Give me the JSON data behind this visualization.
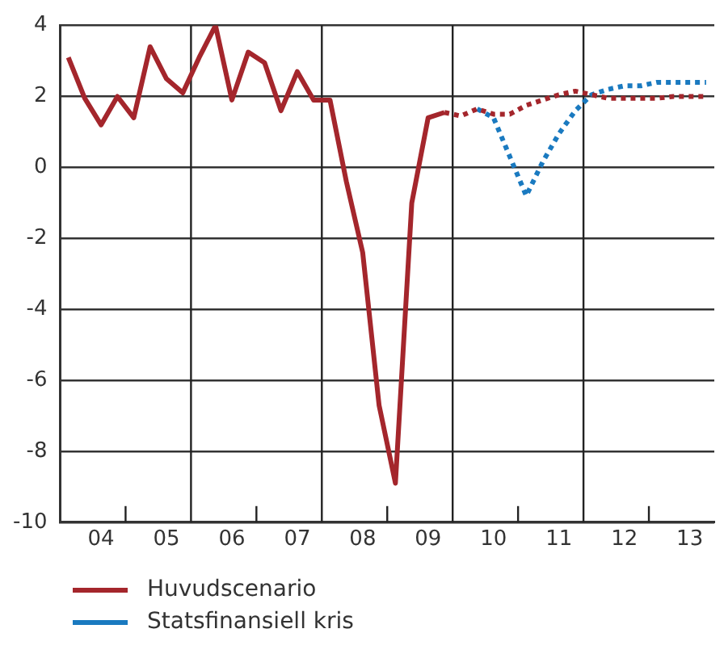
{
  "chart_data": {
    "type": "line",
    "ylim": [
      -10,
      4
    ],
    "yticks": [
      4,
      2,
      0,
      -2,
      -4,
      -6,
      -8,
      -10
    ],
    "categories": [
      null,
      null,
      "04",
      null,
      null,
      null,
      "05",
      null,
      null,
      null,
      "06",
      null,
      null,
      null,
      "07",
      null,
      null,
      null,
      "08",
      null,
      null,
      null,
      "09",
      null,
      null,
      null,
      "10",
      null,
      null,
      null,
      "11",
      null,
      null,
      null,
      "12",
      null,
      null,
      null,
      "13",
      null
    ],
    "grid": "y",
    "legend": "bottom",
    "series": [
      {
        "name": "Huvudscenario",
        "color": "#a4262c",
        "line_style": "solid",
        "values": [
          3.1,
          1.95,
          1.2,
          2.0,
          1.4,
          3.4,
          2.5,
          2.1,
          3.1,
          4.0,
          1.9,
          3.25,
          2.95,
          1.6,
          2.7,
          1.9,
          1.9,
          -0.4,
          -2.4,
          -6.7,
          -8.9,
          -1.0,
          1.4,
          1.55,
          null,
          null,
          null,
          null,
          null,
          null,
          null,
          null,
          null,
          null,
          null,
          null,
          null,
          null,
          null,
          null
        ]
      },
      {
        "color": "#a4262c",
        "line_style": "dotted",
        "values": [
          null,
          null,
          null,
          null,
          null,
          null,
          null,
          null,
          null,
          null,
          null,
          null,
          null,
          null,
          null,
          null,
          null,
          null,
          null,
          null,
          null,
          null,
          null,
          1.55,
          1.45,
          1.65,
          1.5,
          1.5,
          1.75,
          1.9,
          2.05,
          2.15,
          2.05,
          1.95,
          1.95,
          1.95,
          1.95,
          2.0,
          2.0,
          2.0
        ]
      },
      {
        "name": "Statsfinansiell kris",
        "color": "#1a7ac0",
        "line_style": "dotted",
        "values": [
          null,
          null,
          null,
          null,
          null,
          null,
          null,
          null,
          null,
          null,
          null,
          null,
          null,
          null,
          null,
          null,
          null,
          null,
          null,
          null,
          null,
          null,
          null,
          null,
          null,
          1.65,
          1.4,
          0.3,
          -0.8,
          0.15,
          0.95,
          1.6,
          2.05,
          2.2,
          2.3,
          2.3,
          2.4,
          2.4,
          2.4,
          2.4
        ]
      }
    ]
  }
}
